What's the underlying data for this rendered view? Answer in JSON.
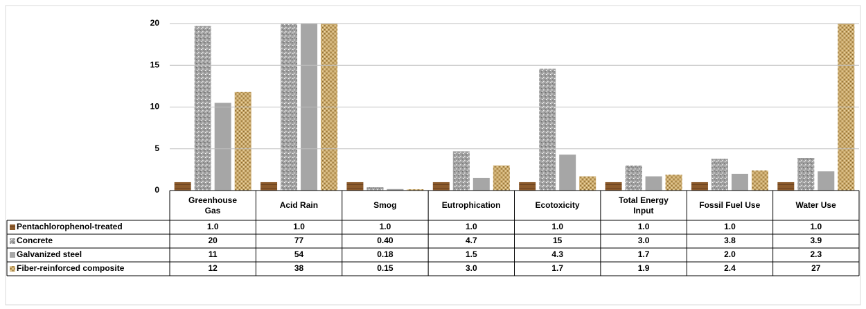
{
  "chart_data": {
    "type": "bar",
    "categories": [
      "Greenhouse Gas",
      "Acid Rain",
      "Smog",
      "Eutrophication",
      "Ecotoxicity",
      "Total Energy Input",
      "Fossil Fuel Use",
      "Water Use"
    ],
    "series": [
      {
        "name": "Pentachlorophenol-treated",
        "color": "#8b5a2b",
        "values": [
          1,
          1,
          1,
          1,
          1,
          1,
          1,
          1
        ],
        "value_labels": [
          "1.0",
          "1.0",
          "1.0",
          "1.0",
          "1.0",
          "1.0",
          "1.0",
          "1.0"
        ]
      },
      {
        "name": "Concrete",
        "color": "#a3a3a3",
        "values": [
          19.7,
          77,
          0.4,
          4.7,
          14.6,
          3.0,
          3.8,
          3.9
        ],
        "value_labels": [
          "20",
          "77",
          "0.40",
          "4.7",
          "15",
          "3.0",
          "3.8",
          "3.9"
        ]
      },
      {
        "name": "Galvanized steel",
        "color": "#a6a6a6",
        "values": [
          10.5,
          54,
          0.18,
          1.5,
          4.3,
          1.7,
          2.0,
          2.3
        ],
        "value_labels": [
          "11",
          "54",
          "0.18",
          "1.5",
          "4.3",
          "1.7",
          "2.0",
          "2.3"
        ]
      },
      {
        "name": "Fiber-reinforced composite",
        "color": "#c9a86a",
        "values": [
          11.8,
          38,
          0.15,
          3.0,
          1.7,
          1.9,
          2.4,
          27
        ],
        "value_labels": [
          "12",
          "38",
          "0.15",
          "3.0",
          "1.7",
          "1.9",
          "2.4",
          "27"
        ]
      }
    ],
    "ylim": [
      0,
      20
    ],
    "yticks": [
      0,
      5,
      10,
      15,
      20
    ],
    "grid": true
  }
}
